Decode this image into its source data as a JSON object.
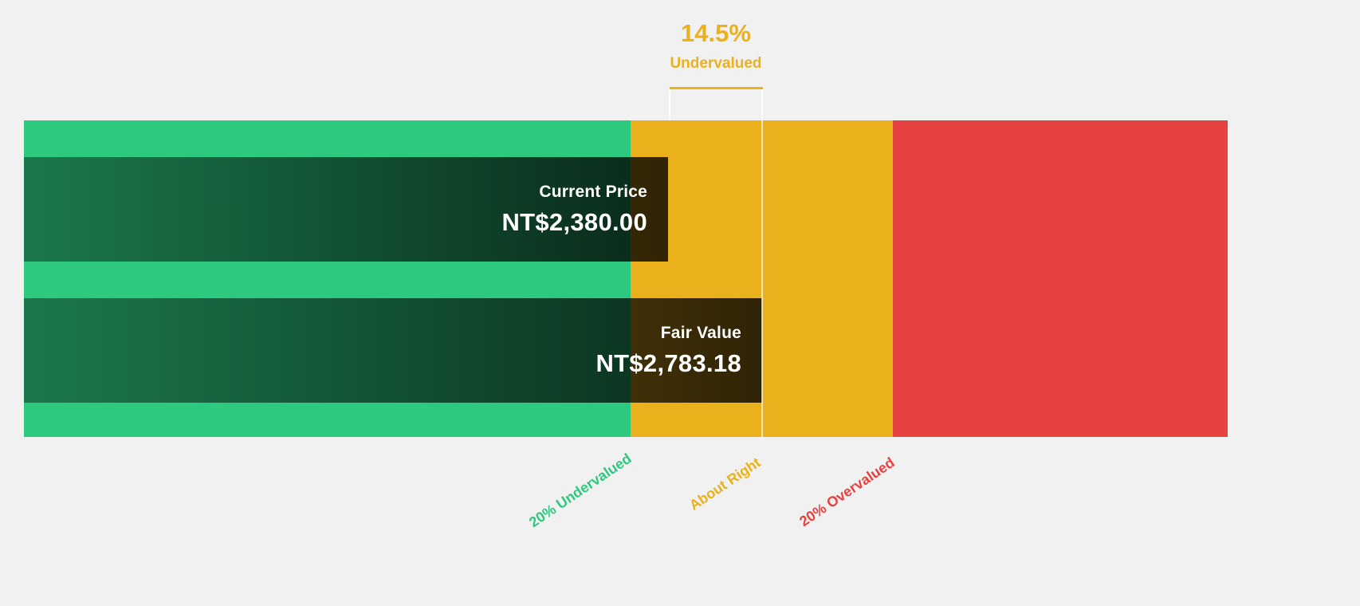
{
  "colors": {
    "background": "#f1f1f1",
    "undervalued_green": "#2dc97e",
    "about_right_amber": "#ebb11d",
    "overvalued_red": "#e64141",
    "bar_text": "#ffffff"
  },
  "annotation": {
    "percent": "14.5%",
    "label": "Undervalued"
  },
  "bars": [
    {
      "label": "Current Price",
      "value": "NT$2,380.00"
    },
    {
      "label": "Fair Value",
      "value": "NT$2,783.18"
    }
  ],
  "zones": [
    {
      "label": "20% Undervalued",
      "color": "#2dc97e"
    },
    {
      "label": "About Right",
      "color": "#ebb11d"
    },
    {
      "label": "20% Overvalued",
      "color": "#e64141"
    }
  ],
  "chart_data": {
    "type": "bar",
    "title": "14.5% Undervalued",
    "currency": "NT$",
    "series": [
      {
        "name": "Current Price",
        "values": [
          2380.0
        ]
      },
      {
        "name": "Fair Value",
        "values": [
          2783.18
        ]
      }
    ],
    "discount_percent": 14.5,
    "zone_labels": [
      "20% Undervalued",
      "About Right",
      "20% Overvalued"
    ],
    "legend_position": "none",
    "grid": false
  }
}
